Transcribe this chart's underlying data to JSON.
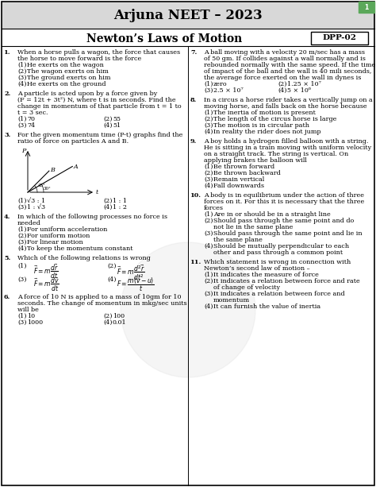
{
  "title": "Arjuna NEET – 2023",
  "subtitle": "Newton’s Laws of Motion",
  "dpp": "DPP-02",
  "bg_color": "#ffffff",
  "header_bg": "#d8d8d8",
  "figsize": [
    4.74,
    6.13
  ],
  "dpi": 100,
  "q1": {
    "num": "1.",
    "text": [
      "When a horse pulls a wagon, the force that causes",
      "the horse to move forward is the force"
    ],
    "opts": [
      "He exerts on the wagon",
      "The wagon exerts on him",
      "The ground exerts on him",
      "He exerts on the ground"
    ]
  },
  "q2": {
    "num": "2.",
    "text": [
      "A particle is acted upon by a force given by",
      "(F = 12t + 3t²) N, where t is in seconds. Find the",
      "change in momentum of that particle from t = 1 to",
      "t = 3 sec."
    ],
    "opts_left": [
      "70",
      "74"
    ],
    "opts_right": [
      "55",
      "51"
    ]
  },
  "q3": {
    "num": "3.",
    "text": [
      "For the given momentum time (P-t) graphs find the",
      "ratio of force on particles A and B."
    ],
    "opts_left": [
      "√3 : 1",
      "1 : √3"
    ],
    "opts_right": [
      "1 : 1",
      "1 : 2"
    ]
  },
  "q4": {
    "num": "4.",
    "text": [
      "In which of the following processes no force is",
      "needed"
    ],
    "opts": [
      "For uniform acceleration",
      "For uniform motion",
      "For linear motion",
      "To keep the momentum constant"
    ]
  },
  "q5": {
    "num": "5.",
    "text": [
      "Which of the following relations is wrong"
    ]
  },
  "q6": {
    "num": "6.",
    "text": [
      "A force of 10 N is applied to a mass of 10gm for 10",
      "seconds. The change of momentum in mkg/sec units",
      "will be"
    ],
    "opts_left": [
      "10",
      "1000"
    ],
    "opts_right": [
      "100",
      "0.01"
    ]
  },
  "q7": {
    "num": "7.",
    "text": [
      "A ball moving with a velocity 20 m/sec has a mass",
      "of 50 gm. If collides against a wall normally and is",
      "rebounded normally with the same speed. If the time",
      "of impact of the ball and the wall is 40 mili seconds,",
      "the average force exerted on the wall in dynes is"
    ],
    "opts_left": [
      "zero",
      "2.5 × 10⁷"
    ],
    "opts_right": [
      "1.25 × 10⁷",
      "5 × 10⁶"
    ]
  },
  "q8": {
    "num": "8.",
    "text": [
      "In a circus a horse rider takes a vertically jump on a",
      "moving horse, and falls back on the horse because"
    ],
    "opts": [
      "The inertia of motion is present",
      "The length of the circus horse is large",
      "The motion is in circular path",
      "In reality the rider does not jump"
    ]
  },
  "q9": {
    "num": "9.",
    "text": [
      "A boy holds a hydrogen filled balloon with a string.",
      "He is sitting in a train moving with uniform velocity",
      "on a straight track. The string is vertical. On",
      "applying brakes the balloon will"
    ],
    "opts": [
      "Be thrown forward",
      "Be thrown backward",
      "Remain vertical",
      "Fall downwards"
    ]
  },
  "q10": {
    "num": "10.",
    "text": [
      "A body is in equilibrium under the action of three",
      "forces on it. For this it is necessary that the three",
      "forces"
    ],
    "opts": [
      [
        "Are in or should be in a straight line"
      ],
      [
        "Should pass through the same point and do",
        "not lie in the same plane"
      ],
      [
        "Should pass through the same point and lie in",
        "the same plane"
      ],
      [
        "Should be mutually perpendicular to each",
        "other and pass through a common point"
      ]
    ]
  },
  "q11": {
    "num": "11.",
    "text": [
      "Which statement is wrong in connection with",
      "Newton’s second law of motion –"
    ],
    "opts": [
      [
        "It indicates the measure of force"
      ],
      [
        "It indicates a relation between force and rate",
        "of change of velocity"
      ],
      [
        "It indicates a relation between force and",
        "momentum"
      ],
      [
        "It can furnish the value of inertia"
      ]
    ]
  }
}
